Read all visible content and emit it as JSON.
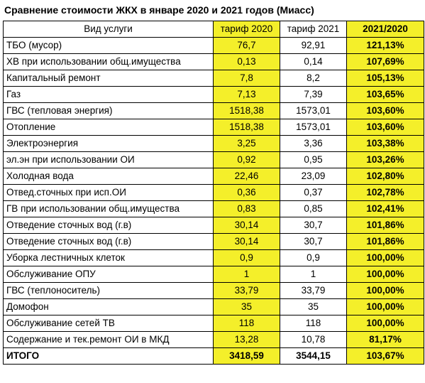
{
  "title": "Сравнение стоимости ЖКХ в январе 2020 и 2021 годов (Миасс)",
  "colors": {
    "highlight": "#f4ef2a",
    "border": "#000000"
  },
  "header": {
    "service": "Вид услуги",
    "tariff_2020": "тариф 2020",
    "tariff_2021": "тариф 2021",
    "ratio": "2021/2020"
  },
  "rows": [
    {
      "service": "ТБО (мусор)",
      "t2020": "76,7",
      "t2021": "92,91",
      "ratio": "121,13%"
    },
    {
      "service": "ХВ при использовании общ.имущества",
      "t2020": "0,13",
      "t2021": "0,14",
      "ratio": "107,69%"
    },
    {
      "service": "Капитальный ремонт",
      "t2020": "7,8",
      "t2021": "8,2",
      "ratio": "105,13%"
    },
    {
      "service": "Газ",
      "t2020": "7,13",
      "t2021": "7,39",
      "ratio": "103,65%"
    },
    {
      "service": "ГВС (тепловая энергия)",
      "t2020": "1518,38",
      "t2021": "1573,01",
      "ratio": "103,60%"
    },
    {
      "service": "Отопление",
      "t2020": "1518,38",
      "t2021": "1573,01",
      "ratio": "103,60%"
    },
    {
      "service": "Электроэнергия",
      "t2020": "3,25",
      "t2021": "3,36",
      "ratio": "103,38%"
    },
    {
      "service": "эл.эн при использовании ОИ",
      "t2020": "0,92",
      "t2021": "0,95",
      "ratio": "103,26%"
    },
    {
      "service": "Холодная вода",
      "t2020": "22,46",
      "t2021": "23,09",
      "ratio": "102,80%"
    },
    {
      "service": "Отвед.сточных при исп.ОИ",
      "t2020": "0,36",
      "t2021": "0,37",
      "ratio": "102,78%"
    },
    {
      "service": "ГВ при использовании общ.имущества",
      "t2020": "0,83",
      "t2021": "0,85",
      "ratio": "102,41%"
    },
    {
      "service": "Отведение сточных вод (г.в)",
      "t2020": "30,14",
      "t2021": "30,7",
      "ratio": "101,86%"
    },
    {
      "service": "Отведение сточных вод (г.в)",
      "t2020": "30,14",
      "t2021": "30,7",
      "ratio": "101,86%"
    },
    {
      "service": "Уборка лестничных клеток",
      "t2020": "0,9",
      "t2021": "0,9",
      "ratio": "100,00%"
    },
    {
      "service": "Обслуживание ОПУ",
      "t2020": "1",
      "t2021": "1",
      "ratio": "100,00%"
    },
    {
      "service": "ГВС (теплоноситель)",
      "t2020": "33,79",
      "t2021": "33,79",
      "ratio": "100,00%"
    },
    {
      "service": "Домофон",
      "t2020": "35",
      "t2021": "35",
      "ratio": "100,00%"
    },
    {
      "service": "Обслуживание сетей ТВ",
      "t2020": "118",
      "t2021": "118",
      "ratio": "100,00%"
    },
    {
      "service": "Содержание и тек.ремонт ОИ в МКД",
      "t2020": "13,28",
      "t2021": "10,78",
      "ratio": "81,17%"
    }
  ],
  "total": {
    "service": "ИТОГО",
    "t2020": "3418,59",
    "t2021": "3544,15",
    "ratio": "103,67%"
  }
}
